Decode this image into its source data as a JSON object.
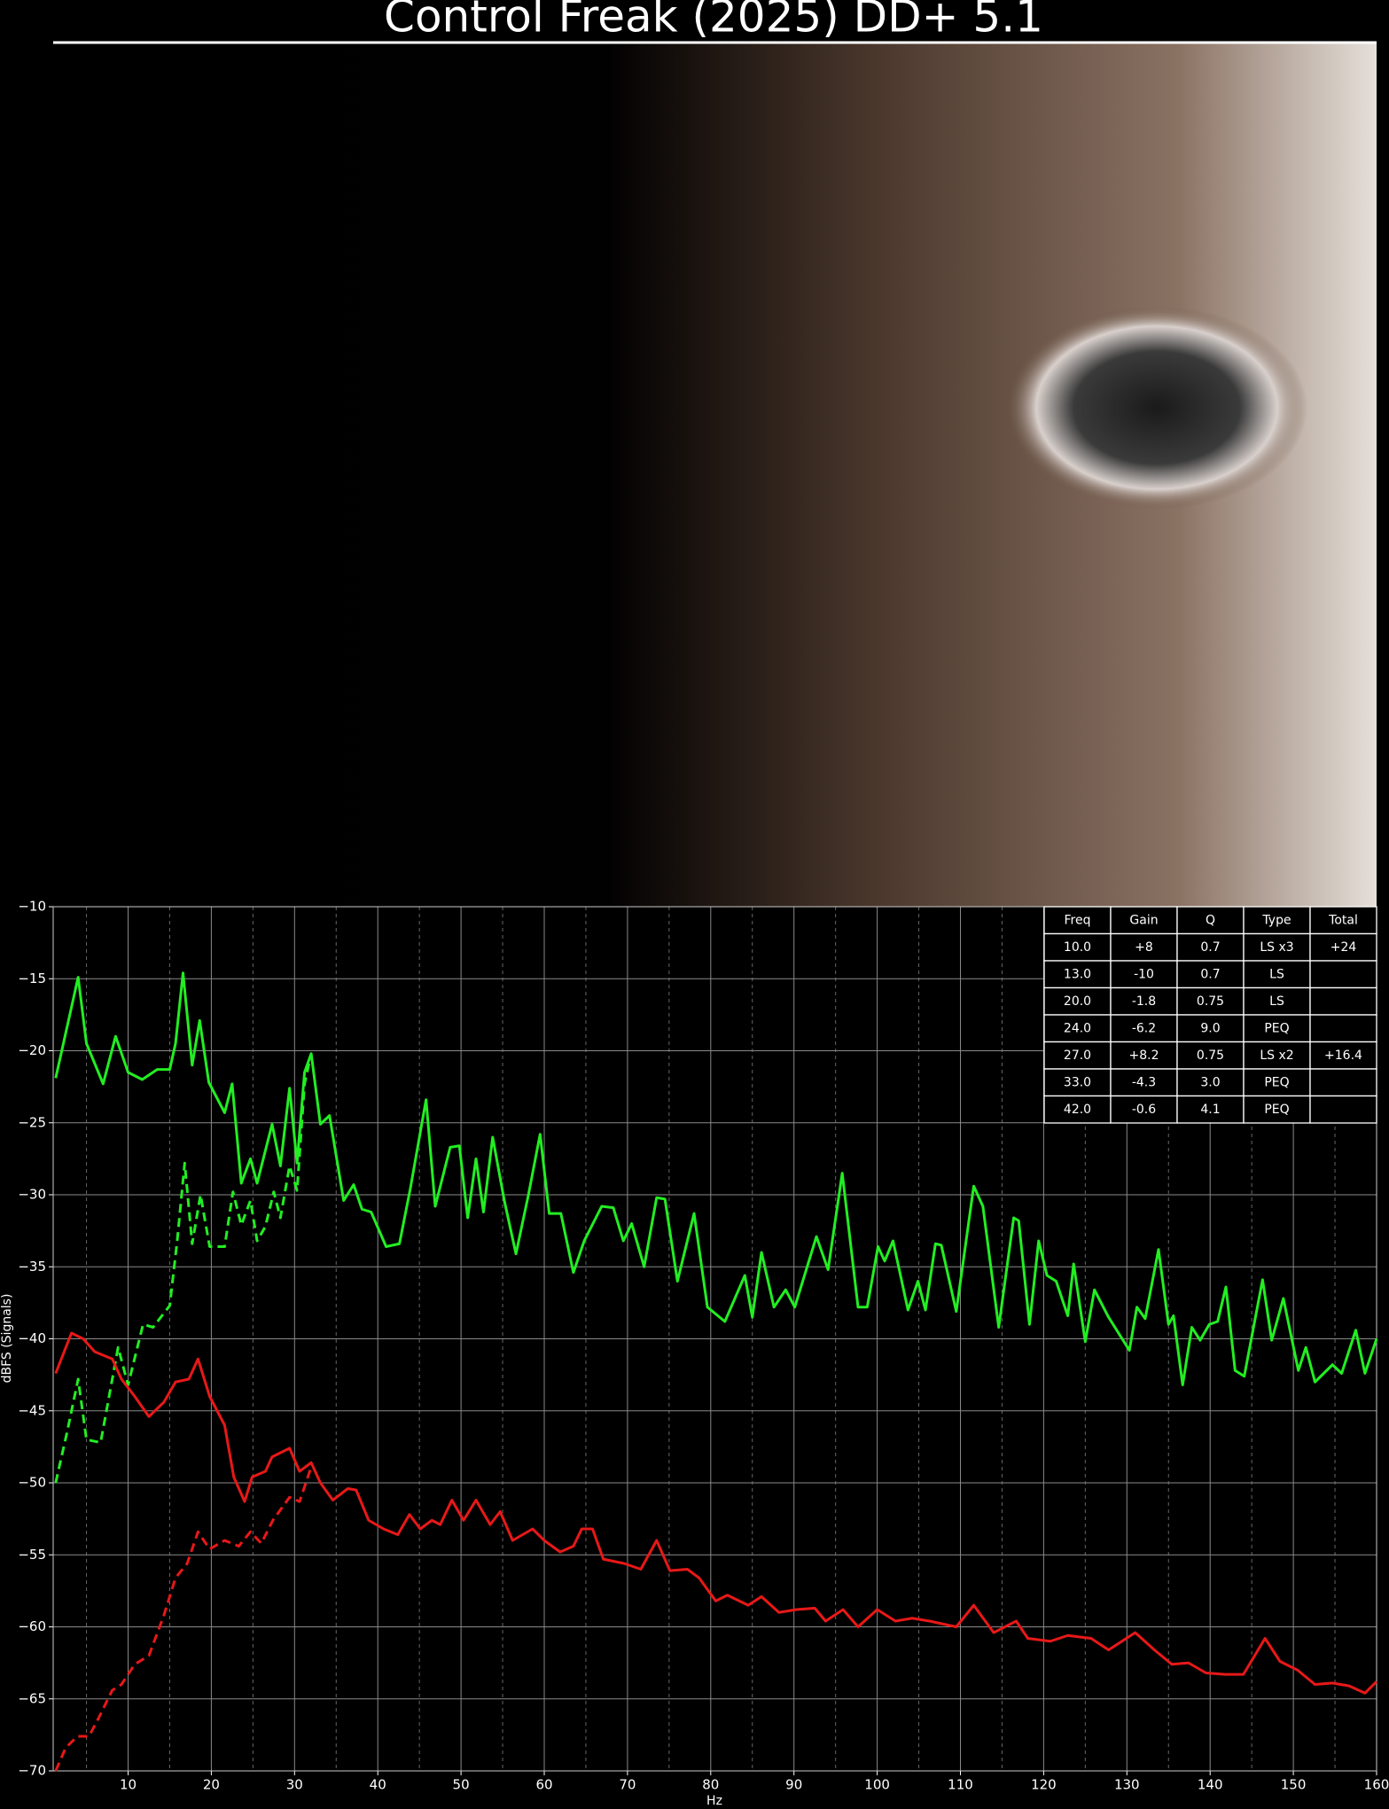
{
  "chart_data": {
    "type": "line",
    "title": "Control Freak (2025) DD+ 5.1",
    "xlabel": "Hz",
    "ylabel": "dBFS (Signals)",
    "xlim": [
      1,
      160
    ],
    "ylim": [
      -70,
      -10
    ],
    "xticks": [
      10,
      20,
      30,
      40,
      50,
      60,
      70,
      80,
      90,
      100,
      110,
      120,
      130,
      140,
      150,
      160
    ],
    "xminorticks": [
      5,
      15,
      25,
      35,
      45,
      55,
      65,
      75,
      85,
      95,
      105,
      115,
      125,
      135,
      145,
      155
    ],
    "yticks": [
      {
        "value": -10,
        "label": "−10"
      },
      {
        "value": -15,
        "label": "−15"
      },
      {
        "value": -20,
        "label": "−20"
      },
      {
        "value": -25,
        "label": "−25"
      },
      {
        "value": -30,
        "label": "−30"
      },
      {
        "value": -35,
        "label": "−35"
      },
      {
        "value": -40,
        "label": "−40"
      },
      {
        "value": -45,
        "label": "−45"
      },
      {
        "value": -50,
        "label": "−50"
      },
      {
        "value": -55,
        "label": "−55"
      },
      {
        "value": -60,
        "label": "−60"
      },
      {
        "value": -65,
        "label": "−65"
      },
      {
        "value": -70,
        "label": "−70"
      }
    ],
    "grid": true,
    "series": [
      {
        "color": "#22ee22",
        "dash": false,
        "x": [
          1.3,
          4,
          5,
          7,
          8.5,
          10,
          11.7,
          13.5,
          15,
          15.7,
          16.6,
          17.7,
          18.6,
          19.7,
          21.6,
          22.5,
          23.6,
          24.7,
          25.5,
          27.3,
          28.3,
          29.4,
          30.3,
          31.2,
          32,
          33.1,
          34.2,
          35.9,
          37.1,
          38.1,
          39.2,
          41,
          42.6,
          43.9,
          45.8,
          46.9,
          48.7,
          49.8,
          50.8,
          51.8,
          52.7,
          53.8,
          55.2,
          56.6,
          58.1,
          59.5,
          60.6,
          62,
          63.5,
          64.8,
          66.9,
          68.3,
          69.5,
          70.5,
          72,
          73.5,
          74.5,
          76,
          78,
          79.6,
          81.7,
          84.1,
          85,
          86.1,
          87.6,
          89,
          90.1,
          92.7,
          94.1,
          95.8,
          97.7,
          98.8,
          100.1,
          100.9,
          101.9,
          103.7,
          104.9,
          105.8,
          107,
          107.7,
          109.5,
          111.6,
          112.7,
          114.6,
          116.4,
          117,
          118.3,
          119.4,
          120.4,
          121.5,
          122.9,
          123.6,
          125,
          126.1,
          127.8,
          130.3,
          131.2,
          132.2,
          133.8,
          135,
          135.6,
          136.7,
          137.8,
          138.8,
          139.9,
          140.9,
          141.9,
          143,
          144.1,
          146.3,
          147.4,
          148.8,
          150.6,
          151.5,
          152.6,
          154.7,
          155.8,
          157.5,
          158.6,
          160
        ],
        "values": [
          -21.9,
          -14.9,
          -19.5,
          -22.3,
          -19,
          -21.5,
          -22,
          -21.3,
          -21.3,
          -19.5,
          -14.6,
          -21,
          -17.9,
          -22.2,
          -24.3,
          -22.3,
          -29.2,
          -27.5,
          -29.2,
          -25.1,
          -28,
          -22.6,
          -27.8,
          -21.5,
          -20.2,
          -25.1,
          -24.5,
          -30.4,
          -29.3,
          -31,
          -31.2,
          -33.6,
          -33.4,
          -29.6,
          -23.4,
          -30.8,
          -26.7,
          -26.6,
          -31.6,
          -27.5,
          -31.2,
          -26,
          -30.4,
          -34.1,
          -30,
          -25.8,
          -31.3,
          -31.3,
          -35.4,
          -33.2,
          -30.8,
          -30.9,
          -33.2,
          -32,
          -35,
          -30.2,
          -30.3,
          -36,
          -31.3,
          -37.8,
          -38.8,
          -35.6,
          -38.5,
          -34,
          -37.8,
          -36.6,
          -37.8,
          -32.9,
          -35.2,
          -28.5,
          -37.8,
          -37.8,
          -33.6,
          -34.6,
          -33.2,
          -38,
          -36,
          -38,
          -33.4,
          -33.5,
          -38.1,
          -29.4,
          -30.8,
          -39.2,
          -31.6,
          -31.8,
          -39,
          -33.2,
          -35.6,
          -36,
          -38.4,
          -34.8,
          -40.2,
          -36.6,
          -38.5,
          -40.8,
          -37.8,
          -38.6,
          -33.8,
          -39,
          -38.4,
          -43.2,
          -39.2,
          -40.1,
          -39,
          -38.8,
          -36.4,
          -42.2,
          -42.6,
          -35.9,
          -40.1,
          -37.2,
          -42.2,
          -40.6,
          -43,
          -41.8,
          -42.4,
          -39.4,
          -42.4,
          -40
        ]
      },
      {
        "color": "#22ee22",
        "dash": true,
        "x": [
          1.3,
          2.7,
          4,
          5,
          6.7,
          8.8,
          10,
          11.8,
          13,
          15,
          15.9,
          16.8,
          17.7,
          18.7,
          19.8,
          21.6,
          22.6,
          23.6,
          24.7,
          25.5,
          26.5,
          27.5,
          28.3,
          29.4,
          30.3,
          31.2,
          32
        ],
        "values": [
          -50,
          -46.4,
          -42.8,
          -47,
          -47.2,
          -40.6,
          -43.2,
          -39,
          -39.2,
          -37.7,
          -33.2,
          -27.8,
          -33.4,
          -30,
          -33.6,
          -33.6,
          -29.8,
          -32.1,
          -30.4,
          -33.2,
          -32.2,
          -29.8,
          -31.6,
          -28,
          -29.7,
          -22.3,
          -20.2
        ]
      },
      {
        "color": "#e81818",
        "dash": false,
        "x": [
          1.3,
          3.2,
          4.6,
          6,
          8.1,
          9.2,
          10.8,
          12.5,
          14.3,
          15.7,
          17.3,
          18.4,
          19.8,
          21.6,
          22.7,
          24,
          24.9,
          26.5,
          27.3,
          29.4,
          30.6,
          32,
          33.1,
          34.6,
          36.4,
          37.4,
          38.9,
          40.7,
          42.4,
          43.8,
          45.1,
          46.5,
          47.5,
          48.9,
          50.3,
          51.8,
          53.5,
          54.7,
          56.2,
          58.6,
          60,
          61.9,
          63.5,
          64.5,
          65.8,
          67.1,
          69.6,
          71.6,
          73.5,
          75.1,
          77.2,
          78.6,
          80.6,
          82,
          84.5,
          86.1,
          88.2,
          90.3,
          92.5,
          93.8,
          95.9,
          97.7,
          100,
          102.2,
          104.2,
          106.3,
          109.5,
          111.6,
          114,
          116.7,
          118.1,
          120.8,
          122.9,
          125.7,
          127.8,
          131,
          133.3,
          135.4,
          137.4,
          139.5,
          141.8,
          144,
          146.6,
          148.4,
          150.5,
          152.6,
          154.7,
          156.7,
          158.6,
          160
        ],
        "values": [
          -42.4,
          -39.6,
          -40,
          -40.9,
          -41.4,
          -42.8,
          -44,
          -45.4,
          -44.4,
          -43,
          -42.8,
          -41.4,
          -44,
          -46,
          -49.6,
          -51.3,
          -49.6,
          -49.2,
          -48.2,
          -47.6,
          -49.2,
          -48.6,
          -50,
          -51.2,
          -50.4,
          -50.5,
          -52.6,
          -53.2,
          -53.6,
          -52.2,
          -53.2,
          -52.6,
          -52.9,
          -51.2,
          -52.6,
          -51.2,
          -52.9,
          -52,
          -54,
          -53.2,
          -54,
          -54.8,
          -54.4,
          -53.2,
          -53.2,
          -55.3,
          -55.6,
          -56,
          -54,
          -56.1,
          -56,
          -56.6,
          -58.2,
          -57.8,
          -58.5,
          -57.9,
          -59,
          -58.8,
          -58.7,
          -59.6,
          -58.8,
          -60,
          -58.8,
          -59.6,
          -59.4,
          -59.6,
          -60,
          -58.5,
          -60.4,
          -59.6,
          -60.8,
          -61,
          -60.6,
          -60.8,
          -61.6,
          -60.4,
          -61.6,
          -62.6,
          -62.5,
          -63.2,
          -63.3,
          -63.3,
          -60.8,
          -62.4,
          -63,
          -64,
          -63.9,
          -64.1,
          -64.6,
          -63.8
        ]
      },
      {
        "color": "#e81818",
        "dash": true,
        "x": [
          1.3,
          2.5,
          3.9,
          5.3,
          6.4,
          8.1,
          9.2,
          10.8,
          12.5,
          14.3,
          15.7,
          17.1,
          18.4,
          19.8,
          21.6,
          23.3,
          24.7,
          26,
          27.4,
          29.4,
          30.6,
          32
        ],
        "values": [
          -70,
          -68.4,
          -67.6,
          -67.6,
          -66.4,
          -64.4,
          -64,
          -62.6,
          -62,
          -59.2,
          -56.6,
          -55.6,
          -53.4,
          -54.6,
          -54,
          -54.4,
          -53.4,
          -54.2,
          -52.6,
          -51,
          -51.3,
          -48.9
        ]
      }
    ]
  },
  "table": {
    "columns": [
      "Freq",
      "Gain",
      "Q",
      "Type",
      "Total"
    ],
    "rows": [
      [
        "10.0",
        "+8",
        "0.7",
        "LS x3",
        "+24"
      ],
      [
        "13.0",
        "-10",
        "0.7",
        "LS",
        null
      ],
      [
        "20.0",
        "-1.8",
        "0.75",
        "LS",
        null
      ],
      [
        "24.0",
        "-6.2",
        "9.0",
        "PEQ",
        null
      ],
      [
        "27.0",
        "+8.2",
        "0.75",
        "LS x2",
        "+16.4"
      ],
      [
        "33.0",
        "-4.3",
        "3.0",
        "PEQ",
        null
      ],
      [
        "42.0",
        "-0.6",
        "4.1",
        "PEQ",
        null
      ]
    ]
  }
}
